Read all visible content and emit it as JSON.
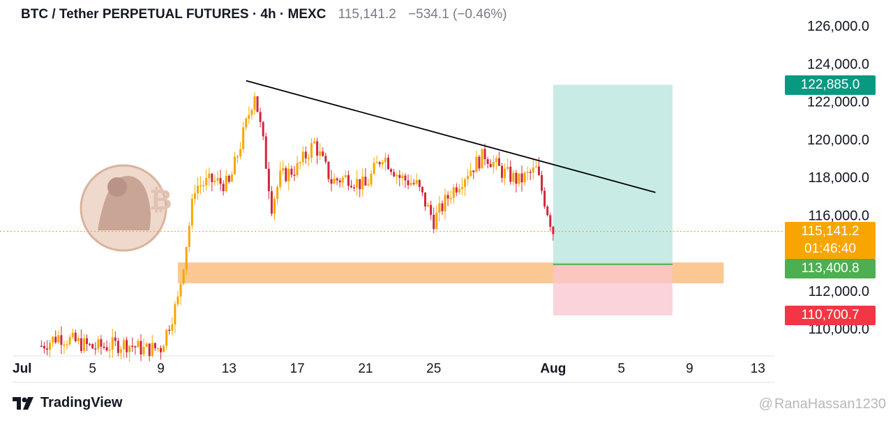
{
  "header": {
    "symbol": "BTC / Tether PERPETUAL FUTURES · 4h · MEXC",
    "price": "115,141.2",
    "change": "−534.1 (−0.46%)"
  },
  "footer": {
    "brand": "TradingView",
    "watermark": "RanaHassan1230"
  },
  "badges": {
    "take_profit": "122,885.0",
    "current_price": "115,141.2",
    "countdown": "01:46:40",
    "entry": "113,400.8",
    "stop_loss": "110,700.7"
  },
  "colors": {
    "up": "#089981",
    "down": "#f23645",
    "candle_up": "#f7a600",
    "candle_down": "#d1263c",
    "profit_zone": "#b2e2dc",
    "loss_zone": "#f9c6cf",
    "support_zone": "#fbc48c",
    "trendline": "#000000"
  },
  "chart_data": {
    "type": "candlestick",
    "title": "BTC / Tether PERPETUAL FUTURES · 4h · MEXC",
    "x_ticks": [
      "Jul",
      "5",
      "9",
      "13",
      "17",
      "21",
      "25",
      "Aug",
      "5",
      "9",
      "13"
    ],
    "y_ticks": [
      "126,000.0",
      "124,000.0",
      "122,000.0",
      "120,000.0",
      "118,000.0",
      "116,000.0",
      "112,000.0",
      "110,000.0"
    ],
    "ylim": [
      109000,
      126500
    ],
    "x_range_days": [
      "2025-06-29",
      "2025-08-14"
    ],
    "last_price": 115141.2,
    "trendline": {
      "from": {
        "date": "2025-07-14",
        "price": 123100
      },
      "to": {
        "date": "2025-08-07",
        "price": 117200
      }
    },
    "support_zone": {
      "from": "2025-07-10",
      "to": "2025-08-11",
      "low": 112400,
      "high": 113500
    },
    "position": {
      "from": "2025-08-01",
      "to": "2025-08-08",
      "entry": 113400.8,
      "take_profit": 122885.0,
      "stop_loss": 110700.7
    },
    "price_path": [
      [
        "2025-07-02",
        109100
      ],
      [
        "2025-07-03",
        109600
      ],
      [
        "2025-07-04",
        109300
      ],
      [
        "2025-07-05",
        109000
      ],
      [
        "2025-07-07",
        109200
      ],
      [
        "2025-07-08",
        108900
      ],
      [
        "2025-07-09",
        109000
      ],
      [
        "2025-07-10",
        111500
      ],
      [
        "2025-07-11",
        117500
      ],
      [
        "2025-07-12",
        117800
      ],
      [
        "2025-07-13",
        117600
      ],
      [
        "2025-07-14",
        120800
      ],
      [
        "2025-07-14T12",
        122500
      ],
      [
        "2025-07-15",
        119800
      ],
      [
        "2025-07-15T12",
        116500
      ],
      [
        "2025-07-16",
        118000
      ],
      [
        "2025-07-17",
        118500
      ],
      [
        "2025-07-18",
        119800
      ],
      [
        "2025-07-19",
        117800
      ],
      [
        "2025-07-20",
        118000
      ],
      [
        "2025-07-21",
        117500
      ],
      [
        "2025-07-22",
        119200
      ],
      [
        "2025-07-23",
        118000
      ],
      [
        "2025-07-24",
        117600
      ],
      [
        "2025-07-25",
        115700
      ],
      [
        "2025-07-26",
        117200
      ],
      [
        "2025-07-27",
        118300
      ],
      [
        "2025-07-28",
        119200
      ],
      [
        "2025-07-29",
        118300
      ],
      [
        "2025-07-30",
        117800
      ],
      [
        "2025-07-31",
        118400
      ],
      [
        "2025-08-01",
        115141.2
      ]
    ]
  }
}
